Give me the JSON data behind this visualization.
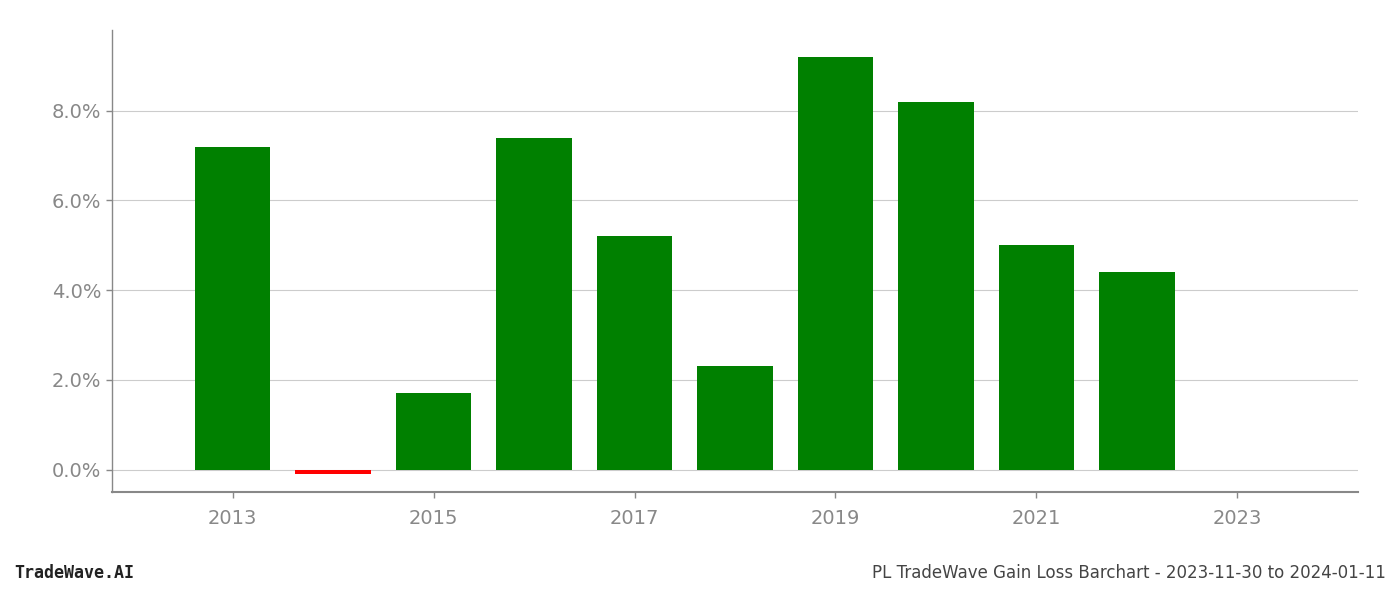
{
  "years": [
    2013,
    2014,
    2015,
    2016,
    2017,
    2018,
    2019,
    2020,
    2021,
    2022,
    2023
  ],
  "values": [
    0.072,
    -0.001,
    0.017,
    0.074,
    0.052,
    0.023,
    0.092,
    0.082,
    0.05,
    0.044,
    0.0
  ],
  "bar_colors": [
    "#008000",
    "#ff0000",
    "#008000",
    "#008000",
    "#008000",
    "#008000",
    "#008000",
    "#008000",
    "#008000",
    "#008000",
    "#008000"
  ],
  "ylim": [
    -0.005,
    0.098
  ],
  "yticks": [
    0.0,
    0.02,
    0.04,
    0.06,
    0.08
  ],
  "ytick_labels": [
    "0.0%",
    "2.0%",
    "4.0%",
    "6.0%",
    "8.0%"
  ],
  "xtick_positions": [
    2013,
    2015,
    2017,
    2019,
    2021,
    2023
  ],
  "xtick_labels": [
    "2013",
    "2015",
    "2017",
    "2019",
    "2021",
    "2023"
  ],
  "footer_left": "TradeWave.AI",
  "footer_right": "PL TradeWave Gain Loss Barchart - 2023-11-30 to 2024-01-11",
  "background_color": "#ffffff",
  "bar_width": 0.75,
  "grid_color": "#cccccc",
  "spine_color": "#888888",
  "tick_color": "#888888",
  "footer_fontsize": 12,
  "tick_fontsize": 14
}
